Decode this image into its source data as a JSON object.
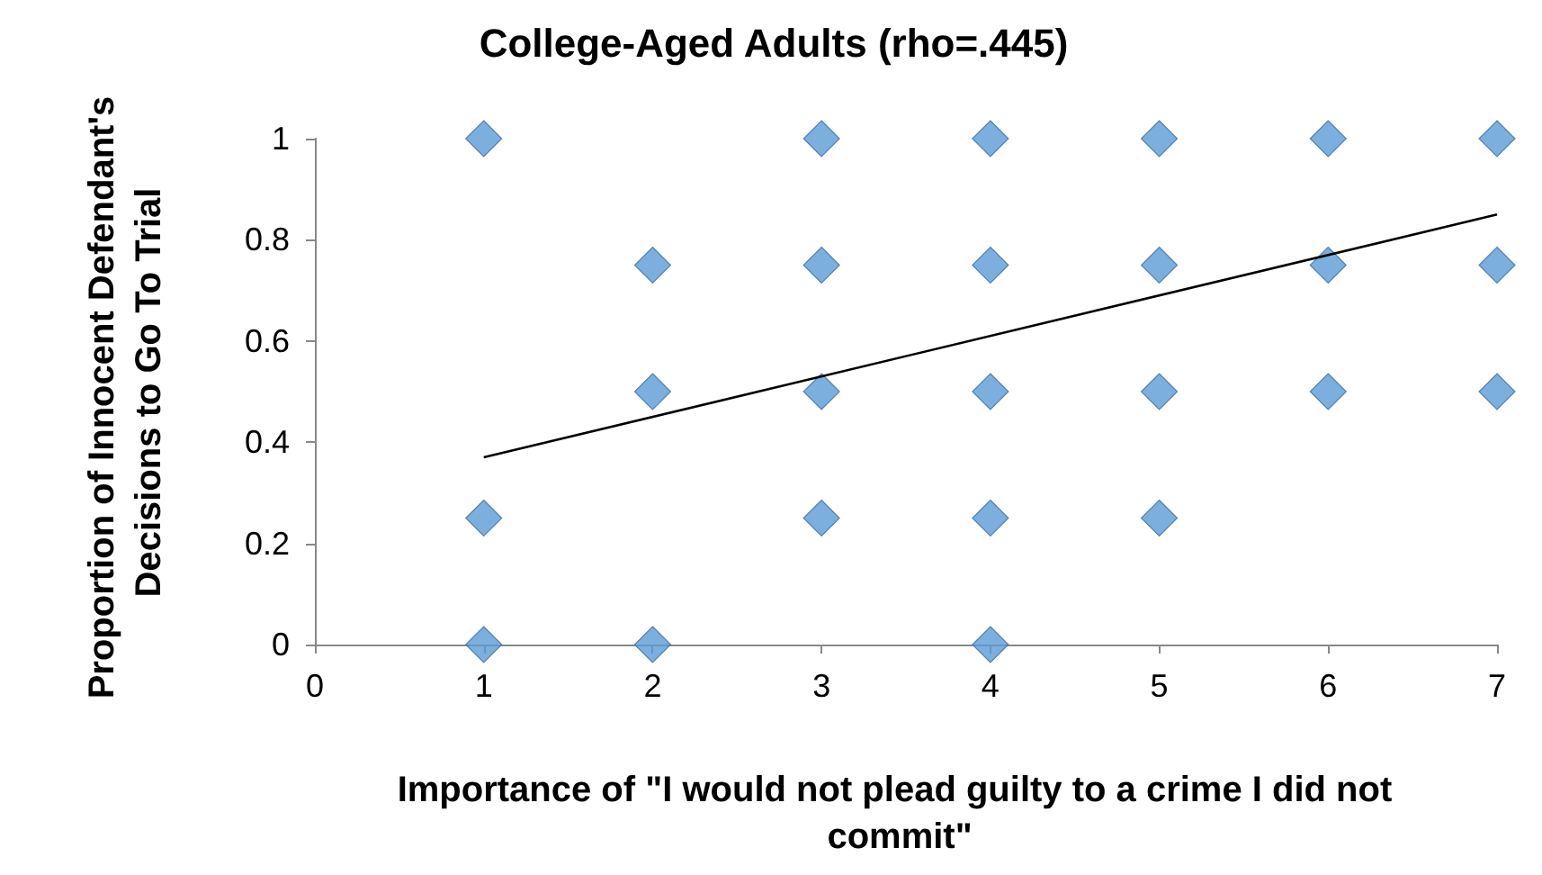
{
  "chart_data": {
    "type": "scatter",
    "title": "College-Aged Adults (rho=.445)",
    "xlabel": "Importance of \"I would not plead guilty to a crime I did not commit\"",
    "ylabel": "Proportion of Innocent Defendant's Decisions to Go To Trial",
    "xlim": [
      0,
      7
    ],
    "xticks": [
      0,
      1,
      2,
      3,
      4,
      5,
      6,
      7
    ],
    "ylim": [
      0,
      1
    ],
    "yticks": [
      0,
      0.2,
      0.4,
      0.6,
      0.8,
      1
    ],
    "grid": false,
    "marker": "diamond",
    "series": [
      {
        "color": "#5b9bd5",
        "x": [
          1,
          1,
          1,
          2,
          2,
          2,
          3,
          3,
          3,
          3,
          4,
          4,
          4,
          4,
          4,
          5,
          5,
          5,
          5,
          6,
          6,
          6,
          7,
          7,
          7
        ],
        "values": [
          1,
          0.25,
          0,
          0.75,
          0.5,
          0,
          1,
          0.75,
          0.5,
          0.25,
          1,
          0.75,
          0.5,
          0.25,
          0,
          1,
          0.75,
          0.5,
          0.25,
          1,
          0.75,
          0.5,
          1,
          0.75,
          0.5
        ]
      },
      {
        "type": "line",
        "color": "#000000",
        "marker": "none",
        "x": [
          1,
          7
        ],
        "values": [
          0.37,
          0.85
        ]
      }
    ]
  }
}
